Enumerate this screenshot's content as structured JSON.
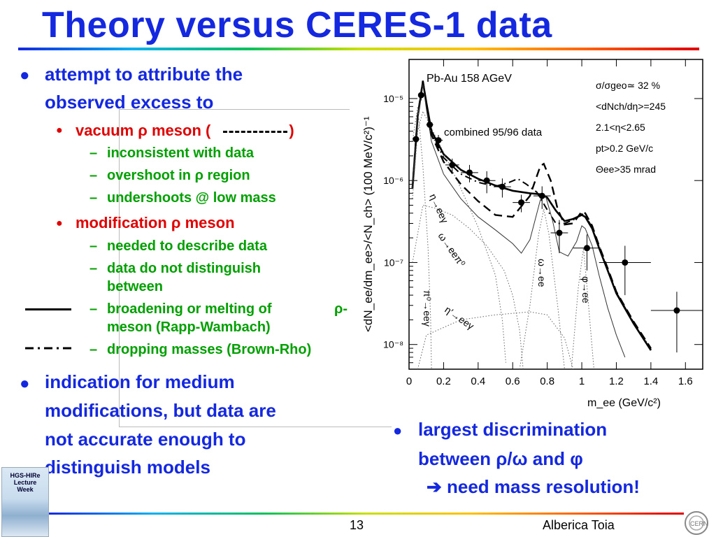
{
  "slide": {
    "title": "Theory versus CERES-1 data",
    "bullets": {
      "b1_line1": "attempt to attribute the",
      "b1_line2": "observed excess to",
      "sub1_prefix": "vacuum ρ meson (",
      "sub1_suffix": ")",
      "sub1_items": [
        "inconsistent with data",
        "overshoot in ρ region",
        "undershoots @ low mass"
      ],
      "sub2_label": "modification ρ meson",
      "sub2_item1": "needed to describe data",
      "sub2_item2_line1": "data do not distinguish",
      "sub2_item2_line2": "between",
      "sub2_item3_line1": "broadening or melting of",
      "sub2_item3_rho": "ρ-",
      "sub2_item3_line2": "meson (Rapp-Wambach)",
      "sub2_item4": "dropping masses (Brown-Rho)",
      "b2_lines": [
        "indication for medium",
        "modifications, but data are",
        "not accurate enough to",
        "distinguish models"
      ],
      "b3_line1": "largest discrimination",
      "b3_line2": "between ρ/ω and φ",
      "b3_line3": "➔ need mass resolution!"
    },
    "footer": {
      "page": "13",
      "author": "Alberica Toia",
      "logo_lines": [
        "HGS-HIRe",
        "Lecture",
        "Week"
      ]
    },
    "colors": {
      "title": "#1428e0",
      "level1": "#1428e0",
      "level2": "#e00000",
      "level3": "#00a000"
    }
  },
  "chart_data": {
    "type": "line",
    "xlabel": "m_ee (GeV/c²)",
    "ylabel": "<dN_ee/dm_ee>/<N_ch> (100 MeV/c²)⁻¹",
    "xlim": [
      0,
      1.7
    ],
    "ylim": [
      5e-09,
      3e-05
    ],
    "yscale": "log",
    "x_ticks": [
      "0",
      "0.2",
      "0.4",
      "0.6",
      "0.8",
      "1",
      "1.2",
      "1.4",
      "1.6"
    ],
    "y_ticks": [
      "10⁻⁵",
      "10⁻⁶",
      "10⁻⁷",
      "10⁻⁸"
    ],
    "annotations": {
      "system": "Pb-Au 158 AGeV",
      "dataset": "combined 95/96 data",
      "cuts": [
        "σ/σgeo≃ 32 %",
        "<dNch/dη>=245",
        "2.1<η<2.65",
        "pt>0.2 GeV/c",
        "Θee>35 mrad"
      ],
      "channels": [
        "η→eeγ",
        "ω→eeπ⁰",
        "π⁰→eeγ",
        "η′→eeγ",
        "ω→ee",
        "φ→ee"
      ]
    },
    "data_points": [
      {
        "x": 0.04,
        "y": 3.2e-06,
        "ex": 0.02,
        "ey": 6e-07
      },
      {
        "x": 0.07,
        "y": 1.1e-05,
        "ex": 0.015,
        "ey": 1.5e-06
      },
      {
        "x": 0.12,
        "y": 4.8e-06,
        "ex": 0.02,
        "ey": 7e-07
      },
      {
        "x": 0.17,
        "y": 3.1e-06,
        "ex": 0.025,
        "ey": 5e-07
      },
      {
        "x": 0.25,
        "y": 1.55e-06,
        "ex": 0.04,
        "ey": 3e-07
      },
      {
        "x": 0.35,
        "y": 1.25e-06,
        "ex": 0.05,
        "ey": 3e-07
      },
      {
        "x": 0.45,
        "y": 1e-06,
        "ex": 0.05,
        "ey": 3e-07
      },
      {
        "x": 0.54,
        "y": 8.4e-07,
        "ex": 0.05,
        "ey": 2.2e-07
      },
      {
        "x": 0.65,
        "y": 5.4e-07,
        "ex": 0.05,
        "ey": 1.3e-07
      },
      {
        "x": 0.77,
        "y": 6.5e-07,
        "ex": 0.05,
        "ey": 2e-07
      },
      {
        "x": 0.87,
        "y": 2.3e-07,
        "ex": 0.05,
        "ey": 1e-07
      },
      {
        "x": 1.03,
        "y": 1.5e-07,
        "ex": 0.08,
        "ey": 7e-08
      },
      {
        "x": 1.25,
        "y": 1e-07,
        "ex": 0.15,
        "ey": 6e-08
      },
      {
        "x": 1.55,
        "y": 2.6e-08,
        "ex": 0.15,
        "ey": 1.8e-08
      }
    ],
    "series": [
      {
        "style": "solid-thick",
        "points": [
          [
            0.02,
            8e-07
          ],
          [
            0.05,
            6e-06
          ],
          [
            0.08,
            1.6e-05
          ],
          [
            0.1,
            9e-06
          ],
          [
            0.13,
            4e-06
          ],
          [
            0.2,
            2.1e-06
          ],
          [
            0.3,
            1.35e-06
          ],
          [
            0.4,
            1.05e-06
          ],
          [
            0.5,
            8.7e-07
          ],
          [
            0.6,
            7.5e-07
          ],
          [
            0.7,
            7e-07
          ],
          [
            0.76,
            6.8e-07
          ],
          [
            0.8,
            6.2e-07
          ],
          [
            0.85,
            4.3e-07
          ],
          [
            0.9,
            3.2e-07
          ],
          [
            0.95,
            3.4e-07
          ],
          [
            1.0,
            3.8e-07
          ],
          [
            1.02,
            3.6e-07
          ],
          [
            1.06,
            2.6e-07
          ],
          [
            1.1,
            1.5e-07
          ],
          [
            1.15,
            8e-08
          ],
          [
            1.2,
            4.2e-08
          ],
          [
            1.3,
            1.8e-08
          ],
          [
            1.4,
            8.5e-09
          ]
        ]
      },
      {
        "style": "dashed",
        "points": [
          [
            0.02,
            8e-07
          ],
          [
            0.05,
            6.2e-06
          ],
          [
            0.08,
            1.65e-05
          ],
          [
            0.1,
            8.8e-06
          ],
          [
            0.13,
            3.6e-06
          ],
          [
            0.2,
            1.7e-06
          ],
          [
            0.3,
            9e-07
          ],
          [
            0.4,
            5.6e-07
          ],
          [
            0.5,
            3.8e-07
          ],
          [
            0.6,
            3.6e-07
          ],
          [
            0.7,
            6.5e-07
          ],
          [
            0.76,
            1.5e-06
          ],
          [
            0.78,
            1.6e-06
          ],
          [
            0.82,
            1e-06
          ],
          [
            0.86,
            4.5e-07
          ],
          [
            0.9,
            2.9e-07
          ],
          [
            0.95,
            3e-07
          ],
          [
            1.0,
            4.2e-07
          ],
          [
            1.02,
            4e-07
          ],
          [
            1.06,
            2.8e-07
          ],
          [
            1.1,
            1.6e-07
          ],
          [
            1.15,
            8.5e-08
          ],
          [
            1.2,
            4.4e-08
          ],
          [
            1.3,
            1.9e-08
          ],
          [
            1.4,
            9e-09
          ]
        ]
      },
      {
        "style": "dash-dot",
        "points": [
          [
            0.02,
            8e-07
          ],
          [
            0.05,
            6e-06
          ],
          [
            0.08,
            1.6e-05
          ],
          [
            0.1,
            8.6e-06
          ],
          [
            0.13,
            3.8e-06
          ],
          [
            0.2,
            1.9e-06
          ],
          [
            0.3,
            1.2e-06
          ],
          [
            0.4,
            9.5e-07
          ],
          [
            0.5,
            8.5e-07
          ],
          [
            0.58,
            9.5e-07
          ],
          [
            0.63,
            1.05e-06
          ],
          [
            0.68,
            9e-07
          ],
          [
            0.74,
            7.2e-07
          ],
          [
            0.8,
            4.4e-07
          ],
          [
            0.85,
            3e-07
          ],
          [
            0.9,
            3e-07
          ],
          [
            0.95,
            3.3e-07
          ],
          [
            1.0,
            3.9e-07
          ],
          [
            1.02,
            3.7e-07
          ],
          [
            1.06,
            2.7e-07
          ],
          [
            1.1,
            1.55e-07
          ],
          [
            1.15,
            8.2e-08
          ],
          [
            1.2,
            4.3e-08
          ],
          [
            1.3,
            1.85e-08
          ],
          [
            1.4,
            8.7e-09
          ]
        ]
      },
      {
        "style": "thin-cocktail",
        "points": [
          [
            0.02,
            8e-07
          ],
          [
            0.05,
            5.8e-06
          ],
          [
            0.08,
            1.5e-05
          ],
          [
            0.1,
            7.5e-06
          ],
          [
            0.13,
            3e-06
          ],
          [
            0.2,
            1.2e-06
          ],
          [
            0.3,
            6e-07
          ],
          [
            0.4,
            3.6e-07
          ],
          [
            0.5,
            2.5e-07
          ],
          [
            0.6,
            1.7e-07
          ],
          [
            0.65,
            1.3e-07
          ],
          [
            0.7,
            1.9e-07
          ],
          [
            0.76,
            5.8e-07
          ],
          [
            0.79,
            6.5e-07
          ],
          [
            0.83,
            3.3e-07
          ],
          [
            0.87,
            1.35e-07
          ],
          [
            0.92,
            1.2e-07
          ],
          [
            0.97,
            1.8e-07
          ],
          [
            1.0,
            2.8e-07
          ],
          [
            1.02,
            2.6e-07
          ],
          [
            1.06,
            1.6e-07
          ],
          [
            1.1,
            7e-08
          ],
          [
            1.15,
            2.8e-08
          ],
          [
            1.2,
            1.3e-08
          ],
          [
            1.25,
            7e-09
          ]
        ]
      },
      {
        "style": "dotted",
        "name": "η→eeγ",
        "points": [
          [
            0.02,
            6e-07
          ],
          [
            0.05,
            4e-06
          ],
          [
            0.08,
            7e-06
          ],
          [
            0.12,
            4.8e-06
          ],
          [
            0.2,
            2.2e-06
          ],
          [
            0.3,
            8e-07
          ],
          [
            0.4,
            2.7e-07
          ],
          [
            0.5,
            7e-08
          ],
          [
            0.54,
            2e-08
          ],
          [
            0.56,
            6e-09
          ]
        ]
      },
      {
        "style": "dotted",
        "name": "π⁰→eeγ",
        "points": [
          [
            0.02,
            3e-06
          ],
          [
            0.05,
            8e-06
          ],
          [
            0.08,
            1.5e-06
          ],
          [
            0.11,
            1.5e-07
          ],
          [
            0.125,
            2e-08
          ],
          [
            0.13,
            5e-09
          ]
        ]
      },
      {
        "style": "dotted",
        "name": "ω→eeπ⁰",
        "points": [
          [
            0.02,
            1e-07
          ],
          [
            0.08,
            5e-07
          ],
          [
            0.15,
            4.6e-07
          ],
          [
            0.25,
            3.8e-07
          ],
          [
            0.35,
            2.6e-07
          ],
          [
            0.45,
            1.6e-07
          ],
          [
            0.55,
            8e-08
          ],
          [
            0.6,
            4e-08
          ],
          [
            0.64,
            1.5e-08
          ],
          [
            0.66,
            5e-09
          ]
        ]
      },
      {
        "style": "dotted",
        "name": "η′→eeγ",
        "points": [
          [
            0.05,
            5e-09
          ],
          [
            0.1,
            1.3e-08
          ],
          [
            0.3,
            2e-08
          ],
          [
            0.5,
            2.3e-08
          ],
          [
            0.7,
            2.5e-08
          ],
          [
            0.8,
            2.3e-08
          ],
          [
            0.9,
            1.2e-08
          ],
          [
            0.95,
            5e-09
          ]
        ]
      },
      {
        "style": "dotted",
        "name": "ω→ee",
        "points": [
          [
            0.64,
            5e-09
          ],
          [
            0.7,
            3e-08
          ],
          [
            0.75,
            2.2e-07
          ],
          [
            0.78,
            4.5e-07
          ],
          [
            0.81,
            2.2e-07
          ],
          [
            0.86,
            3e-08
          ],
          [
            0.9,
            5e-09
          ]
        ]
      },
      {
        "style": "dotted",
        "name": "φ→ee",
        "points": [
          [
            0.94,
            5e-09
          ],
          [
            0.98,
            5e-08
          ],
          [
            1.01,
            1.5e-07
          ],
          [
            1.03,
            5e-08
          ],
          [
            1.07,
            5e-09
          ]
        ]
      }
    ]
  }
}
